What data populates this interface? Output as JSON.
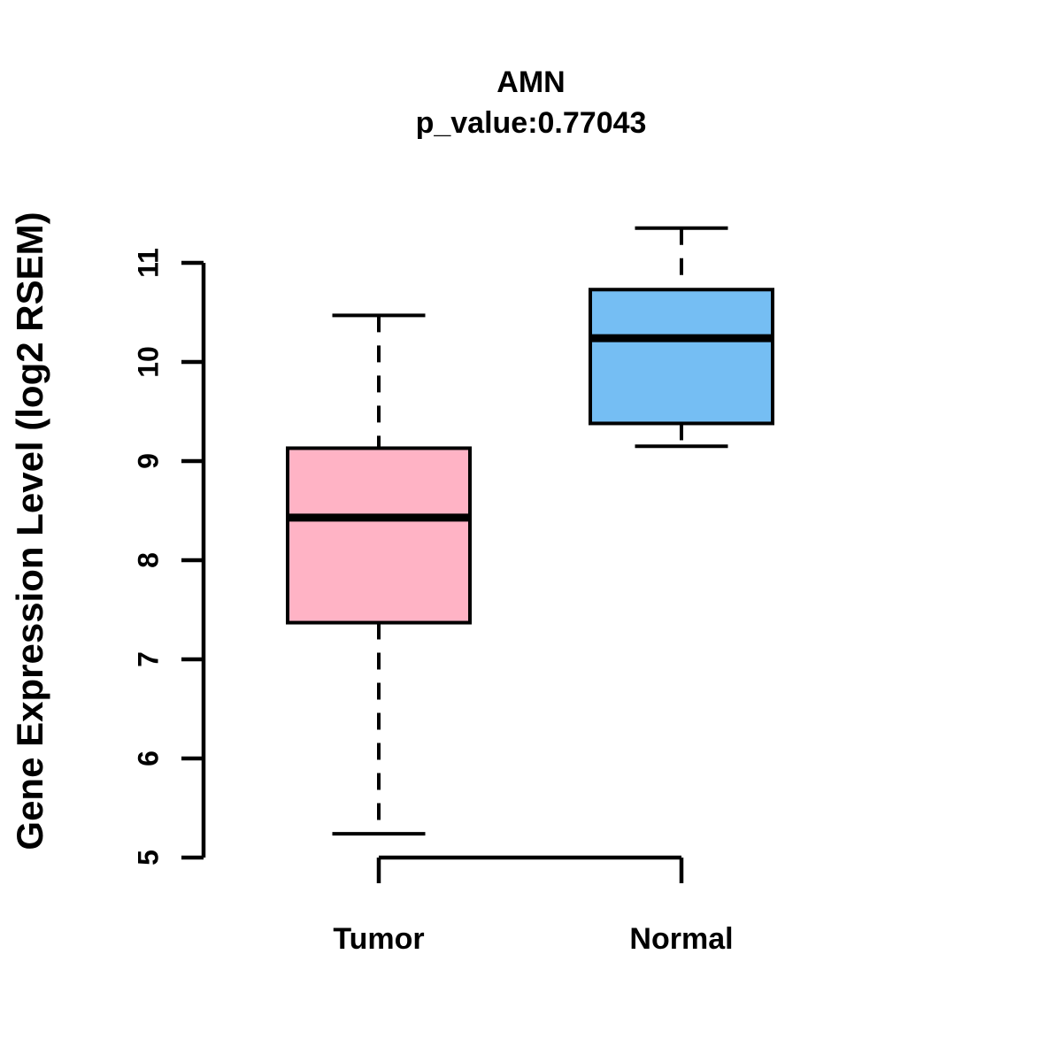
{
  "page": {
    "background": "#ffffff"
  },
  "chart_data": {
    "type": "boxplot",
    "title": "AMN",
    "subtitle": "p_value:0.77043",
    "ylabel": "Gene Expression Level (log2 RSEM)",
    "xlabel": "",
    "categories": [
      "Tumor",
      "Normal"
    ],
    "yticks": [
      5,
      6,
      7,
      8,
      9,
      10,
      11
    ],
    "ylim": [
      5,
      11.6
    ],
    "grid": false,
    "legend": "none",
    "series": [
      {
        "name": "Tumor",
        "color": "#FFB3C5",
        "whisker_low": 5.24,
        "q1": 7.37,
        "median": 8.43,
        "q3": 9.13,
        "whisker_high": 10.47
      },
      {
        "name": "Normal",
        "color": "#75BEF3",
        "whisker_low": 9.15,
        "q1": 9.38,
        "median": 10.24,
        "q3": 10.73,
        "whisker_high": 11.35
      }
    ],
    "colors": {
      "box_border": "#000000",
      "median_line": "#000000",
      "axis": "#000000",
      "text": "#000000"
    }
  }
}
